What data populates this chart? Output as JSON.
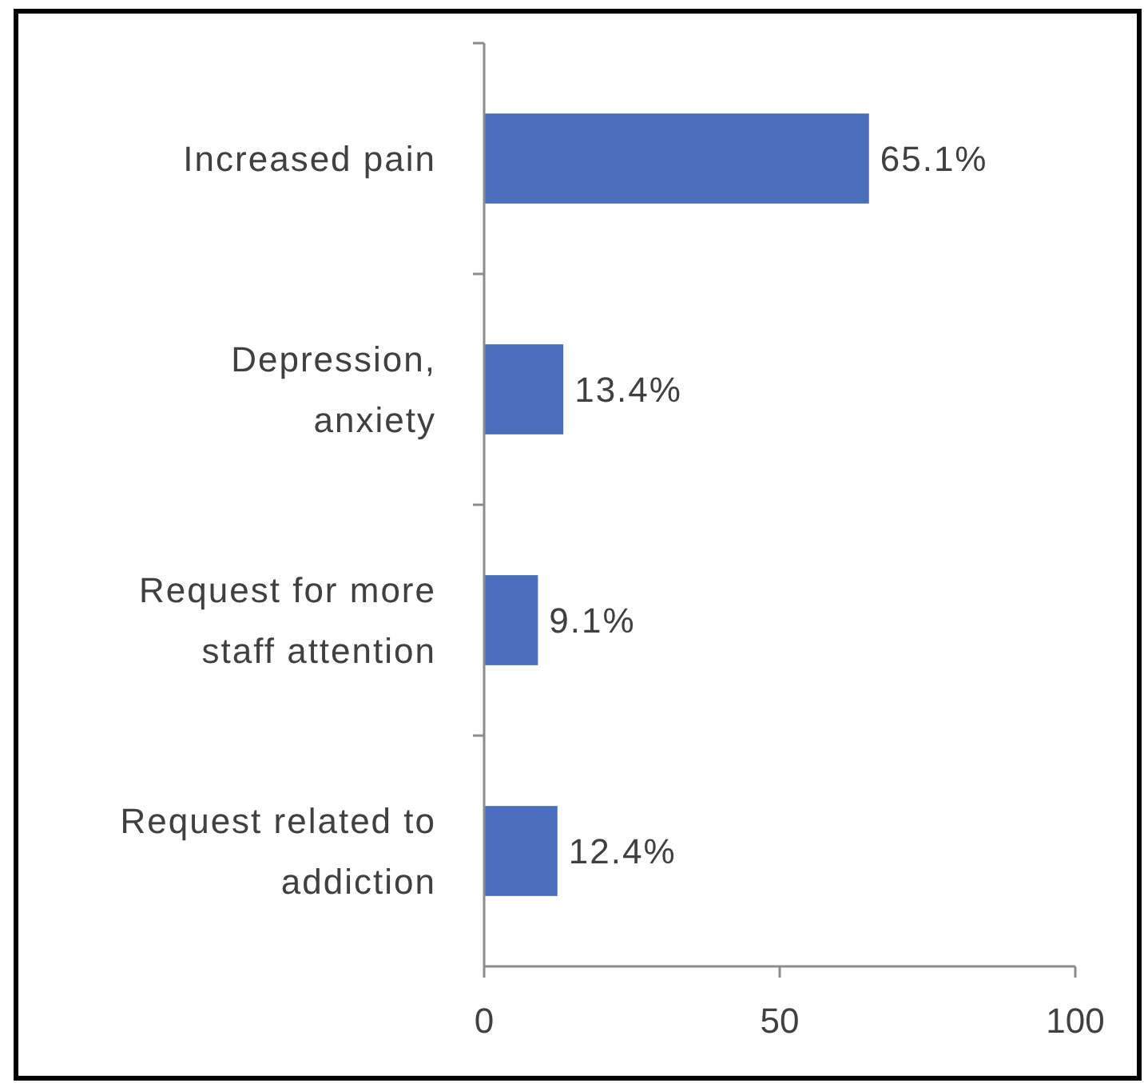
{
  "chart_data": {
    "type": "bar",
    "orientation": "horizontal",
    "categories": [
      "Increased pain",
      "Depression, anxiety",
      "Request for more staff attention",
      "Request related to addiction"
    ],
    "values": [
      65.1,
      13.4,
      9.1,
      12.4
    ],
    "color": "#4a6ebb",
    "value_labels": [
      "65.1%",
      "13.4%",
      "9.1%",
      "12.4%"
    ],
    "xlim": [
      0,
      100
    ],
    "xticks": [
      0,
      50,
      100
    ]
  }
}
